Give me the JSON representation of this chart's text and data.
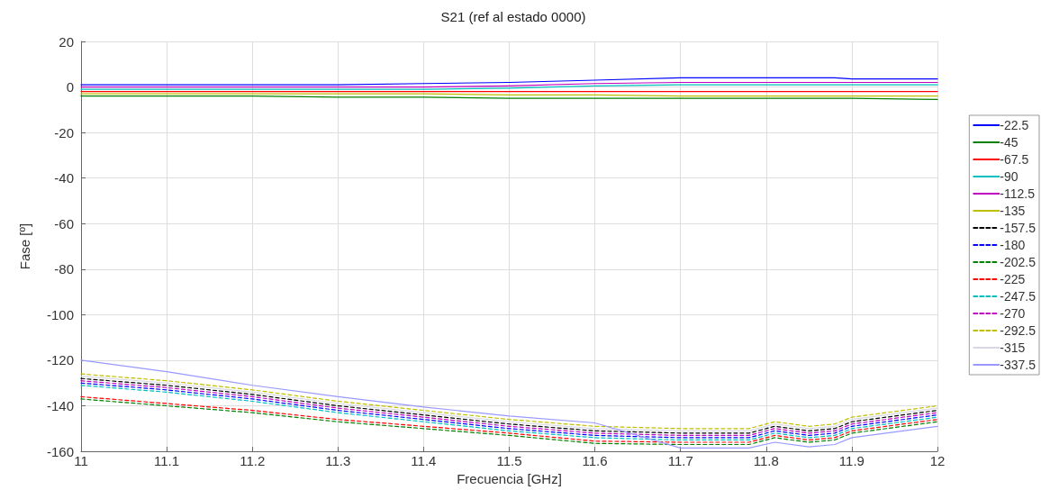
{
  "chart_data": {
    "type": "line",
    "title": "S21 (ref al estado 0000)",
    "xlabel": "Frecuencia [GHz]",
    "ylabel": "Fase [º]",
    "x": [
      11,
      11.1,
      11.2,
      11.3,
      11.4,
      11.5,
      11.6,
      11.7,
      11.78,
      11.81,
      11.85,
      11.88,
      11.9,
      12
    ],
    "xlim": [
      11,
      12
    ],
    "xticks": [
      11,
      11.1,
      11.2,
      11.3,
      11.4,
      11.5,
      11.6,
      11.7,
      11.8,
      11.9,
      12
    ],
    "ylim": [
      -160,
      20
    ],
    "yticks": [
      -160,
      -140,
      -120,
      -100,
      -80,
      -60,
      -40,
      -20,
      0,
      20
    ],
    "grid": true,
    "legend": "right",
    "marker": "none",
    "line_style": "solid",
    "series": [
      {
        "name": "-22.5",
        "color": "#0000ff",
        "values": [
          1,
          1,
          1,
          1,
          1.5,
          2,
          3,
          4,
          4,
          4,
          4,
          4,
          3.5,
          3.5
        ]
      },
      {
        "name": "-45",
        "color": "#008000",
        "values": [
          -4,
          -4,
          -4,
          -4.5,
          -4.5,
          -5,
          -5,
          -5,
          -5,
          -5,
          -5,
          -5,
          -5,
          -5.5
        ]
      },
      {
        "name": "-67.5",
        "color": "#ff0000",
        "values": [
          -2,
          -2,
          -2,
          -2,
          -2,
          -2,
          -2,
          -2,
          -2,
          -2,
          -2,
          -2,
          -2,
          -2
        ]
      },
      {
        "name": "-90",
        "color": "#00bfbf",
        "values": [
          -1,
          -1,
          -1,
          -1,
          -1,
          -0.5,
          0.5,
          1,
          1,
          1,
          1,
          1,
          1,
          1
        ]
      },
      {
        "name": "-112.5",
        "color": "#bf00bf",
        "values": [
          0,
          0,
          0,
          0,
          0,
          0.5,
          1.5,
          2,
          2,
          2,
          2,
          2,
          2,
          2
        ]
      },
      {
        "name": "-135",
        "color": "#bfbf00",
        "values": [
          -3,
          -3,
          -3,
          -3,
          -3,
          -3.5,
          -3.5,
          -4,
          -4,
          -4,
          -4,
          -4,
          -4,
          -4
        ]
      },
      {
        "name": "-157.5",
        "color": "#000000",
        "line_style": "dashed",
        "values": [
          -128,
          -131,
          -135,
          -140,
          -144,
          -148,
          -151,
          -152,
          -152,
          -149,
          -151,
          -150,
          -147,
          -142
        ]
      },
      {
        "name": "-180",
        "color": "#0000ff",
        "line_style": "dashed",
        "values": [
          -130,
          -133,
          -137,
          -142,
          -146,
          -150,
          -153,
          -154,
          -154,
          -151,
          -153,
          -152,
          -149,
          -144
        ]
      },
      {
        "name": "-202.5",
        "color": "#008000",
        "line_style": "dashed",
        "values": [
          -137,
          -140,
          -143,
          -147,
          -150,
          -153,
          -156.5,
          -157,
          -157,
          -154,
          -156,
          -155,
          -152,
          -147
        ]
      },
      {
        "name": "-225",
        "color": "#ff0000",
        "line_style": "dashed",
        "values": [
          -136,
          -139,
          -142,
          -146,
          -149,
          -152,
          -155.5,
          -156,
          -156,
          -153,
          -155,
          -154,
          -151,
          -146
        ]
      },
      {
        "name": "-247.5",
        "color": "#00bfbf",
        "line_style": "dashed",
        "values": [
          -131,
          -134,
          -138,
          -143,
          -147,
          -151,
          -154,
          -155,
          -155,
          -152,
          -154,
          -153,
          -150,
          -145
        ]
      },
      {
        "name": "-270",
        "color": "#bf00bf",
        "line_style": "dashed",
        "values": [
          -129,
          -132,
          -136,
          -141,
          -145,
          -149,
          -152,
          -153,
          -153,
          -150,
          -152,
          -151,
          -148,
          -143
        ]
      },
      {
        "name": "-292.5",
        "color": "#bfbf00",
        "line_style": "dashed",
        "values": [
          -126,
          -129,
          -133,
          -138,
          -142,
          -146,
          -149,
          -150,
          -150,
          -147,
          -149,
          -148,
          -145,
          -140
        ]
      },
      {
        "name": "-315",
        "color": "#d8d8e4",
        "values": [
          -127,
          -130,
          -134,
          -139,
          -143,
          -147,
          -150,
          -151,
          -151,
          -148,
          -150,
          -149,
          -146,
          -141
        ]
      },
      {
        "name": "-337.5",
        "color": "#9999ff",
        "values": [
          -120,
          -125,
          -131,
          -136,
          -140.5,
          -144.5,
          -147.5,
          -158.5,
          -158.5,
          -156,
          -158,
          -157,
          -154,
          -149
        ]
      }
    ]
  }
}
